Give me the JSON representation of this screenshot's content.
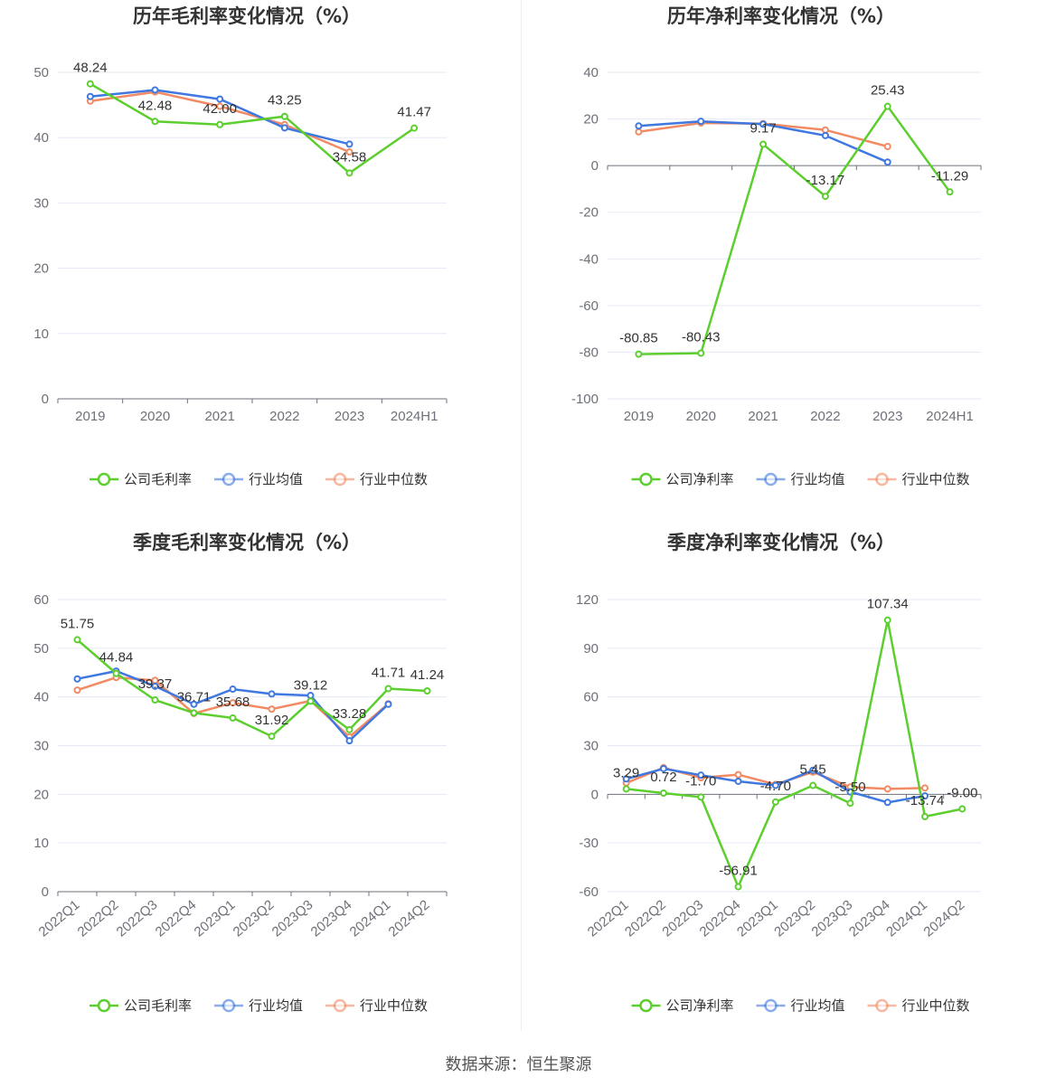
{
  "source": "数据来源：恒生聚源",
  "colors": {
    "company": "#5ccf2f",
    "avg": "#3f78e0",
    "median": "#f28a63",
    "grid": "#e6e9f5",
    "axis": "#6e7079"
  },
  "chart_data": [
    {
      "type": "line",
      "title": "历年毛利率变化情况（%）",
      "categories": [
        "2019",
        "2020",
        "2021",
        "2022",
        "2023",
        "2024H1"
      ],
      "ylim": [
        0,
        50
      ],
      "yticks": [
        0,
        10,
        20,
        30,
        40,
        50
      ],
      "series": [
        {
          "name": "公司毛利率",
          "values": [
            48.24,
            42.48,
            42.0,
            43.25,
            34.58,
            41.47
          ],
          "labels": [
            "48.24",
            "42.48",
            "42.00",
            "43.25",
            "34.58",
            "41.47"
          ]
        },
        {
          "name": "行业均值",
          "values": [
            46.3,
            47.3,
            45.9,
            41.5,
            39.0,
            null
          ]
        },
        {
          "name": "行业中位数",
          "values": [
            45.6,
            47.0,
            44.8,
            42.0,
            37.8,
            null
          ]
        }
      ]
    },
    {
      "type": "line",
      "title": "历年净利率变化情况（%）",
      "categories": [
        "2019",
        "2020",
        "2021",
        "2022",
        "2023",
        "2024H1"
      ],
      "ylim": [
        -100,
        40
      ],
      "yticks": [
        -100,
        -80,
        -60,
        -40,
        -20,
        0,
        20,
        40
      ],
      "series": [
        {
          "name": "公司净利率",
          "values": [
            -80.85,
            -80.43,
            9.17,
            -13.17,
            25.43,
            -11.29
          ],
          "labels": [
            "-80.85",
            "-80.43",
            "9.17",
            "-13.17",
            "25.43",
            "-11.29"
          ]
        },
        {
          "name": "行业均值",
          "values": [
            17.0,
            19.0,
            17.8,
            12.9,
            1.5,
            null
          ]
        },
        {
          "name": "行业中位数",
          "values": [
            14.5,
            18.3,
            18.0,
            15.3,
            8.2,
            null
          ]
        }
      ]
    },
    {
      "type": "line",
      "title": "季度毛利率变化情况（%）",
      "categories": [
        "2022Q1",
        "2022Q2",
        "2022Q3",
        "2022Q4",
        "2023Q1",
        "2023Q2",
        "2023Q3",
        "2023Q4",
        "2024Q1",
        "2024Q2"
      ],
      "ylim": [
        0,
        60
      ],
      "yticks": [
        0,
        10,
        20,
        30,
        40,
        50,
        60
      ],
      "series": [
        {
          "name": "公司毛利率",
          "values": [
            51.75,
            44.84,
            39.37,
            36.71,
            35.68,
            31.92,
            39.12,
            33.28,
            41.71,
            41.24
          ],
          "labels": [
            "51.75",
            "44.84",
            "39.37",
            "36.71",
            "35.68",
            "31.92",
            "39.12",
            "33.28",
            "41.71",
            "41.24"
          ]
        },
        {
          "name": "行业均值",
          "values": [
            43.7,
            45.3,
            42.2,
            38.5,
            41.6,
            40.6,
            40.3,
            31.0,
            38.5,
            null
          ]
        },
        {
          "name": "行业中位数",
          "values": [
            41.4,
            44.0,
            43.4,
            36.6,
            38.8,
            37.5,
            39.2,
            31.8,
            38.6,
            null
          ]
        }
      ]
    },
    {
      "type": "line",
      "title": "季度净利率变化情况（%）",
      "categories": [
        "2022Q1",
        "2022Q2",
        "2022Q3",
        "2022Q4",
        "2023Q1",
        "2023Q2",
        "2023Q3",
        "2023Q4",
        "2024Q1",
        "2024Q2"
      ],
      "ylim": [
        -60,
        120
      ],
      "yticks": [
        -60,
        -30,
        0,
        30,
        60,
        90,
        120
      ],
      "series": [
        {
          "name": "公司净利率",
          "values": [
            3.29,
            0.72,
            -1.7,
            -56.91,
            -4.7,
            5.45,
            -5.5,
            107.34,
            -13.74,
            -9.0
          ],
          "labels": [
            "3.29",
            "0.72",
            "-1.70",
            "-56.91",
            "-4.70",
            "5.45",
            "-5.50",
            "107.34",
            "-13.74",
            "-9.00"
          ]
        },
        {
          "name": "行业均值",
          "values": [
            9.5,
            15.8,
            11.8,
            8.0,
            5.5,
            14.8,
            1.5,
            -5.0,
            -1.0,
            null
          ]
        },
        {
          "name": "行业中位数",
          "values": [
            7.0,
            16.4,
            10.2,
            12.1,
            6.1,
            13.7,
            4.5,
            3.3,
            3.9,
            null
          ]
        }
      ]
    }
  ]
}
